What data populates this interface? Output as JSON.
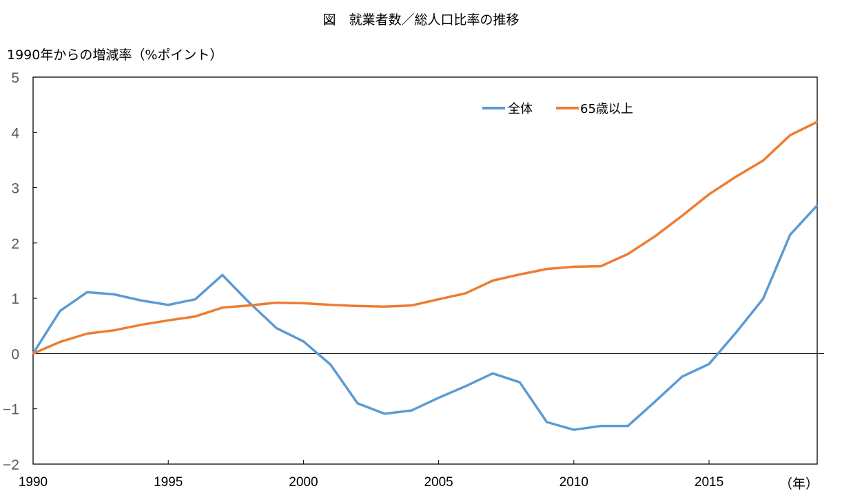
{
  "chart_data": {
    "type": "line",
    "title": "図　就業者数／総人口比率の推移",
    "ylabel": "1990年からの増減率（%ポイント）",
    "xlabel": "（年）",
    "xlim": [
      1990,
      2019
    ],
    "ylim": [
      -2,
      5
    ],
    "yticks": [
      5,
      4,
      3,
      2,
      1,
      0,
      -1,
      -2
    ],
    "ytick_labels": [
      "5",
      "4",
      "3",
      "2",
      "1",
      "0",
      "−1",
      "−2"
    ],
    "xticks": [
      1990,
      1995,
      2000,
      2005,
      2010,
      2015
    ],
    "xtick_labels": [
      "1990",
      "1995",
      "2000",
      "2005",
      "2010",
      "2015"
    ],
    "grid": false,
    "legend_position": "top-right",
    "x": [
      1990,
      1991,
      1992,
      1993,
      1994,
      1995,
      1996,
      1997,
      1998,
      1999,
      2000,
      2001,
      2002,
      2003,
      2004,
      2005,
      2006,
      2007,
      2008,
      2009,
      2010,
      2011,
      2012,
      2013,
      2014,
      2015,
      2016,
      2017,
      2018,
      2019
    ],
    "series": [
      {
        "name": "全体",
        "color": "#5b9bd5",
        "values": [
          0,
          0.77,
          1.11,
          1.07,
          0.96,
          0.88,
          0.98,
          1.42,
          0.92,
          0.46,
          0.22,
          -0.2,
          -0.9,
          -1.09,
          -1.03,
          -0.8,
          -0.59,
          -0.36,
          -0.52,
          -1.24,
          -1.38,
          -1.31,
          -1.31,
          -0.87,
          -0.42,
          -0.19,
          0.38,
          0.99,
          2.15,
          2.68
        ]
      },
      {
        "name": "65歳以上",
        "color": "#ed7d31",
        "values": [
          0,
          0.21,
          0.36,
          0.42,
          0.52,
          0.6,
          0.67,
          0.83,
          0.87,
          0.92,
          0.91,
          0.88,
          0.86,
          0.85,
          0.87,
          0.98,
          1.09,
          1.32,
          1.43,
          1.53,
          1.57,
          1.58,
          1.8,
          2.12,
          2.49,
          2.88,
          3.2,
          3.49,
          3.95,
          4.19
        ]
      }
    ]
  }
}
